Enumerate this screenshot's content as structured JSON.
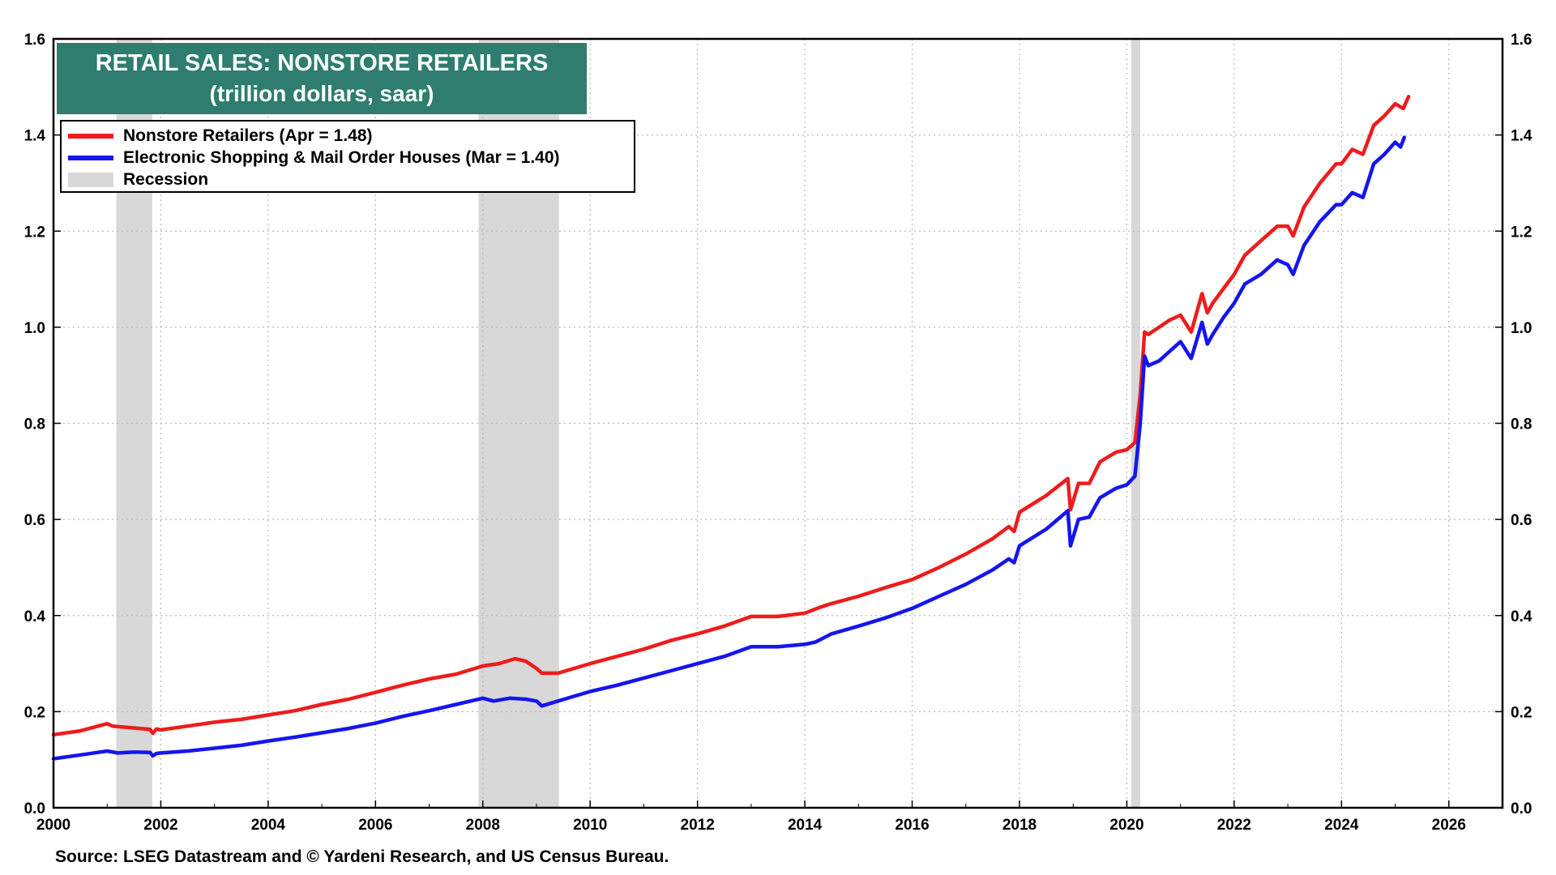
{
  "title": "RETAIL SALES: NONSTORE RETAILERS",
  "subtitle": "(trillion dollars, saar)",
  "source": "Source: LSEG Datastream and © Yardeni Research, and US Census Bureau.",
  "colors": {
    "nonstore": "#ee1c1c",
    "electronic": "#1515ee",
    "recession": "#d8d8d8",
    "title_bg": "#2e7d6e"
  },
  "legend": [
    {
      "label": "Nonstore Retailers (Apr = 1.48)",
      "swatch": "line",
      "color": "#ee1c1c"
    },
    {
      "label": "Electronic Shopping & Mail Order Houses (Mar = 1.40)",
      "swatch": "line",
      "color": "#1515ee"
    },
    {
      "label": "Recession",
      "swatch": "box",
      "color": "#d8d8d8"
    }
  ],
  "chart_data": {
    "type": "line",
    "xlim": [
      2000,
      2027
    ],
    "ylim": [
      0,
      1.6
    ],
    "x_ticks": [
      "2000",
      "2002",
      "2004",
      "2006",
      "2008",
      "2010",
      "2012",
      "2014",
      "2016",
      "2018",
      "2020",
      "2022",
      "2024",
      "2026"
    ],
    "y_ticks": [
      "0.0",
      "0.2",
      "0.4",
      "0.6",
      "0.8",
      "1.0",
      "1.2",
      "1.4",
      "1.6"
    ],
    "grid": true,
    "legend_position": "top-left",
    "recessions": [
      [
        2001.17,
        2001.84
      ],
      [
        2007.92,
        2009.42
      ],
      [
        2020.08,
        2020.25
      ]
    ],
    "series": [
      {
        "name": "Nonstore Retailers (Apr = 1.48)",
        "color": "#ee1c1c",
        "points": [
          [
            2000.0,
            0.152
          ],
          [
            2000.5,
            0.16
          ],
          [
            2001.0,
            0.175
          ],
          [
            2001.1,
            0.17
          ],
          [
            2001.5,
            0.166
          ],
          [
            2001.8,
            0.163
          ],
          [
            2001.85,
            0.155
          ],
          [
            2001.92,
            0.164
          ],
          [
            2002.0,
            0.162
          ],
          [
            2002.5,
            0.17
          ],
          [
            2003.0,
            0.178
          ],
          [
            2003.5,
            0.184
          ],
          [
            2004.0,
            0.193
          ],
          [
            2004.5,
            0.202
          ],
          [
            2005.0,
            0.215
          ],
          [
            2005.5,
            0.226
          ],
          [
            2006.0,
            0.24
          ],
          [
            2006.5,
            0.255
          ],
          [
            2007.0,
            0.268
          ],
          [
            2007.5,
            0.278
          ],
          [
            2008.0,
            0.295
          ],
          [
            2008.3,
            0.3
          ],
          [
            2008.6,
            0.31
          ],
          [
            2008.8,
            0.305
          ],
          [
            2009.0,
            0.29
          ],
          [
            2009.1,
            0.28
          ],
          [
            2009.4,
            0.28
          ],
          [
            2009.7,
            0.29
          ],
          [
            2010.0,
            0.3
          ],
          [
            2010.5,
            0.315
          ],
          [
            2011.0,
            0.33
          ],
          [
            2011.5,
            0.348
          ],
          [
            2012.0,
            0.362
          ],
          [
            2012.5,
            0.378
          ],
          [
            2013.0,
            0.398
          ],
          [
            2013.5,
            0.398
          ],
          [
            2014.0,
            0.405
          ],
          [
            2014.3,
            0.418
          ],
          [
            2014.5,
            0.425
          ],
          [
            2015.0,
            0.44
          ],
          [
            2015.5,
            0.458
          ],
          [
            2016.0,
            0.475
          ],
          [
            2016.5,
            0.5
          ],
          [
            2017.0,
            0.528
          ],
          [
            2017.5,
            0.56
          ],
          [
            2017.8,
            0.585
          ],
          [
            2017.9,
            0.575
          ],
          [
            2018.0,
            0.615
          ],
          [
            2018.5,
            0.65
          ],
          [
            2018.9,
            0.685
          ],
          [
            2018.95,
            0.62
          ],
          [
            2019.1,
            0.675
          ],
          [
            2019.3,
            0.675
          ],
          [
            2019.5,
            0.72
          ],
          [
            2019.8,
            0.74
          ],
          [
            2020.0,
            0.745
          ],
          [
            2020.15,
            0.76
          ],
          [
            2020.25,
            0.86
          ],
          [
            2020.33,
            0.99
          ],
          [
            2020.4,
            0.985
          ],
          [
            2020.6,
            1.0
          ],
          [
            2020.8,
            1.015
          ],
          [
            2021.0,
            1.025
          ],
          [
            2021.2,
            0.99
          ],
          [
            2021.4,
            1.07
          ],
          [
            2021.5,
            1.03
          ],
          [
            2021.6,
            1.05
          ],
          [
            2021.8,
            1.08
          ],
          [
            2022.0,
            1.11
          ],
          [
            2022.2,
            1.15
          ],
          [
            2022.5,
            1.18
          ],
          [
            2022.8,
            1.21
          ],
          [
            2023.0,
            1.21
          ],
          [
            2023.1,
            1.19
          ],
          [
            2023.3,
            1.25
          ],
          [
            2023.6,
            1.3
          ],
          [
            2023.9,
            1.34
          ],
          [
            2024.0,
            1.34
          ],
          [
            2024.2,
            1.37
          ],
          [
            2024.4,
            1.36
          ],
          [
            2024.6,
            1.42
          ],
          [
            2024.8,
            1.44
          ],
          [
            2025.0,
            1.465
          ],
          [
            2025.15,
            1.455
          ],
          [
            2025.25,
            1.48
          ]
        ]
      },
      {
        "name": "Electronic Shopping & Mail Order Houses (Mar = 1.40)",
        "color": "#1515ee",
        "points": [
          [
            2000.0,
            0.102
          ],
          [
            2000.5,
            0.11
          ],
          [
            2001.0,
            0.118
          ],
          [
            2001.2,
            0.114
          ],
          [
            2001.5,
            0.116
          ],
          [
            2001.8,
            0.115
          ],
          [
            2001.85,
            0.108
          ],
          [
            2001.92,
            0.113
          ],
          [
            2002.0,
            0.114
          ],
          [
            2002.5,
            0.118
          ],
          [
            2003.0,
            0.124
          ],
          [
            2003.5,
            0.13
          ],
          [
            2004.0,
            0.139
          ],
          [
            2004.5,
            0.147
          ],
          [
            2005.0,
            0.156
          ],
          [
            2005.5,
            0.165
          ],
          [
            2006.0,
            0.176
          ],
          [
            2006.5,
            0.19
          ],
          [
            2007.0,
            0.202
          ],
          [
            2007.5,
            0.215
          ],
          [
            2008.0,
            0.228
          ],
          [
            2008.2,
            0.222
          ],
          [
            2008.5,
            0.228
          ],
          [
            2008.8,
            0.226
          ],
          [
            2009.0,
            0.222
          ],
          [
            2009.1,
            0.212
          ],
          [
            2009.4,
            0.222
          ],
          [
            2009.7,
            0.232
          ],
          [
            2010.0,
            0.242
          ],
          [
            2010.5,
            0.255
          ],
          [
            2011.0,
            0.27
          ],
          [
            2011.5,
            0.285
          ],
          [
            2012.0,
            0.3
          ],
          [
            2012.5,
            0.315
          ],
          [
            2013.0,
            0.335
          ],
          [
            2013.5,
            0.335
          ],
          [
            2014.0,
            0.34
          ],
          [
            2014.2,
            0.345
          ],
          [
            2014.5,
            0.362
          ],
          [
            2015.0,
            0.378
          ],
          [
            2015.5,
            0.395
          ],
          [
            2016.0,
            0.415
          ],
          [
            2016.5,
            0.44
          ],
          [
            2017.0,
            0.465
          ],
          [
            2017.5,
            0.495
          ],
          [
            2017.8,
            0.518
          ],
          [
            2017.9,
            0.51
          ],
          [
            2018.0,
            0.545
          ],
          [
            2018.5,
            0.58
          ],
          [
            2018.9,
            0.618
          ],
          [
            2018.95,
            0.545
          ],
          [
            2019.1,
            0.6
          ],
          [
            2019.3,
            0.605
          ],
          [
            2019.5,
            0.645
          ],
          [
            2019.8,
            0.665
          ],
          [
            2020.0,
            0.672
          ],
          [
            2020.15,
            0.69
          ],
          [
            2020.25,
            0.8
          ],
          [
            2020.33,
            0.94
          ],
          [
            2020.4,
            0.92
          ],
          [
            2020.6,
            0.93
          ],
          [
            2020.8,
            0.95
          ],
          [
            2021.0,
            0.97
          ],
          [
            2021.2,
            0.935
          ],
          [
            2021.4,
            1.01
          ],
          [
            2021.5,
            0.965
          ],
          [
            2021.6,
            0.985
          ],
          [
            2021.8,
            1.02
          ],
          [
            2022.0,
            1.05
          ],
          [
            2022.2,
            1.09
          ],
          [
            2022.5,
            1.11
          ],
          [
            2022.8,
            1.14
          ],
          [
            2023.0,
            1.13
          ],
          [
            2023.1,
            1.11
          ],
          [
            2023.3,
            1.17
          ],
          [
            2023.6,
            1.22
          ],
          [
            2023.9,
            1.255
          ],
          [
            2024.0,
            1.255
          ],
          [
            2024.2,
            1.28
          ],
          [
            2024.4,
            1.27
          ],
          [
            2024.6,
            1.34
          ],
          [
            2024.8,
            1.36
          ],
          [
            2025.0,
            1.385
          ],
          [
            2025.1,
            1.375
          ],
          [
            2025.17,
            1.395
          ]
        ]
      }
    ]
  }
}
